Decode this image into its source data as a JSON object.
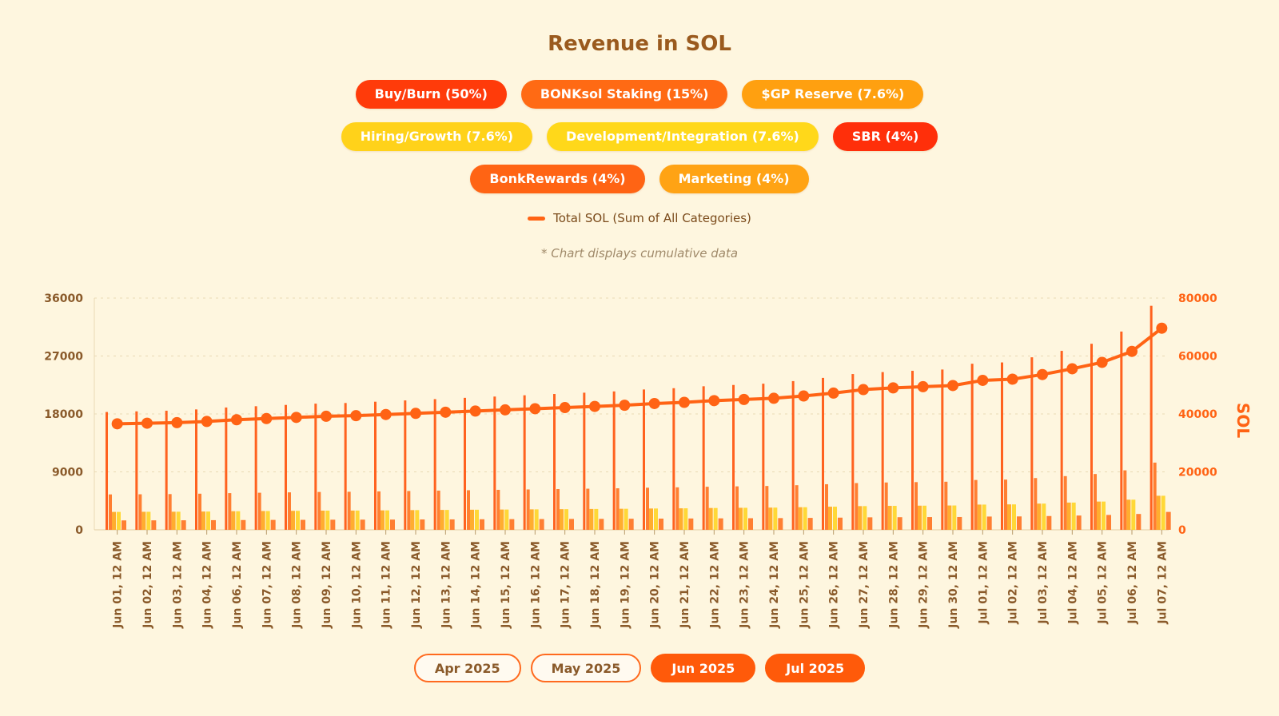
{
  "title": "Revenue in SOL",
  "legend": {
    "row1": [
      {
        "label": "Buy/Burn (50%)",
        "color": "#ff3b0a"
      },
      {
        "label": "BONKsol Staking (15%)",
        "color": "#ff6a14"
      },
      {
        "label": "$GP Reserve (7.6%)",
        "color": "#ffa010"
      }
    ],
    "row2": [
      {
        "label": "Hiring/Growth (7.6%)",
        "color": "#ffd21a"
      },
      {
        "label": "Development/Integration (7.6%)",
        "color": "#ffd81a"
      },
      {
        "label": "SBR (4%)",
        "color": "#ff2f0a"
      }
    ],
    "row3": [
      {
        "label": "BonkRewards (4%)",
        "color": "#ff6414"
      },
      {
        "label": "Marketing (4%)",
        "color": "#ffa314"
      }
    ],
    "line_label": "Total SOL (Sum of All Categories)"
  },
  "note": "* Chart displays cumulative data",
  "months": {
    "apr": "Apr 2025",
    "may": "May 2025",
    "jun": "Jun 2025",
    "jul": "Jul 2025"
  },
  "colors": {
    "bar_main": "#ff5a14",
    "bar_2": "#ffa010",
    "bar_3": "#ffd21a",
    "bar_4": "#ff6a14",
    "line": "#ff6314",
    "axis_text": "#8a5a2a",
    "right_axis_text": "#ff6314"
  },
  "chart_data": {
    "type": "bar",
    "categories": [
      "Jun 01, 12 AM",
      "Jun 02, 12 AM",
      "Jun 03, 12 AM",
      "Jun 04, 12 AM",
      "Jun 06, 12 AM",
      "Jun 07, 12 AM",
      "Jun 08, 12 AM",
      "Jun 09, 12 AM",
      "Jun 10, 12 AM",
      "Jun 11, 12 AM",
      "Jun 12, 12 AM",
      "Jun 13, 12 AM",
      "Jun 14, 12 AM",
      "Jun 15, 12 AM",
      "Jun 16, 12 AM",
      "Jun 17, 12 AM",
      "Jun 18, 12 AM",
      "Jun 19, 12 AM",
      "Jun 20, 12 AM",
      "Jun 21, 12 AM",
      "Jun 22, 12 AM",
      "Jun 23, 12 AM",
      "Jun 24, 12 AM",
      "Jun 25, 12 AM",
      "Jun 26, 12 AM",
      "Jun 27, 12 AM",
      "Jun 28, 12 AM",
      "Jun 29, 12 AM",
      "Jun 30, 12 AM",
      "Jul 01, 12 AM",
      "Jul 02, 12 AM",
      "Jul 03, 12 AM",
      "Jul 04, 12 AM",
      "Jul 05, 12 AM",
      "Jul 06, 12 AM",
      "Jul 07, 12 AM"
    ],
    "series": [
      {
        "name": "Buy/Burn (50%)",
        "axis": "left",
        "values": [
          18300,
          18400,
          18500,
          18700,
          19000,
          19200,
          19400,
          19600,
          19700,
          19900,
          20100,
          20300,
          20500,
          20700,
          20900,
          21100,
          21300,
          21500,
          21800,
          22000,
          22300,
          22500,
          22700,
          23100,
          23600,
          24200,
          24500,
          24700,
          24900,
          25800,
          26000,
          26800,
          27800,
          28900,
          30800,
          34800
        ]
      },
      {
        "name": "BONKsol Staking (15%)",
        "axis": "left",
        "values": [
          5500,
          5520,
          5550,
          5610,
          5700,
          5760,
          5820,
          5880,
          5910,
          5970,
          6030,
          6090,
          6150,
          6210,
          6270,
          6330,
          6390,
          6450,
          6540,
          6600,
          6690,
          6750,
          6810,
          6930,
          7080,
          7260,
          7350,
          7410,
          7470,
          7740,
          7800,
          8040,
          8340,
          8670,
          9240,
          10440
        ]
      },
      {
        "name": "$GP Reserve (7.6%)",
        "axis": "left",
        "values": [
          2780,
          2800,
          2810,
          2840,
          2890,
          2920,
          2950,
          2980,
          2990,
          3020,
          3060,
          3090,
          3120,
          3150,
          3180,
          3210,
          3240,
          3270,
          3310,
          3340,
          3390,
          3420,
          3450,
          3510,
          3590,
          3680,
          3720,
          3750,
          3780,
          3920,
          3950,
          4070,
          4230,
          4390,
          4680,
          5290
        ]
      },
      {
        "name": "Hiring/Growth (7.6%)",
        "axis": "left",
        "values": [
          2780,
          2800,
          2810,
          2840,
          2890,
          2920,
          2950,
          2980,
          2990,
          3020,
          3060,
          3090,
          3120,
          3150,
          3180,
          3210,
          3240,
          3270,
          3310,
          3340,
          3390,
          3420,
          3450,
          3510,
          3590,
          3680,
          3720,
          3750,
          3780,
          3920,
          3950,
          4070,
          4230,
          4390,
          4680,
          5290
        ]
      },
      {
        "name": "SBR (4%)",
        "axis": "left",
        "values": [
          1460,
          1470,
          1480,
          1500,
          1520,
          1540,
          1550,
          1570,
          1580,
          1590,
          1610,
          1620,
          1640,
          1660,
          1670,
          1690,
          1700,
          1720,
          1740,
          1760,
          1780,
          1800,
          1820,
          1850,
          1890,
          1940,
          1960,
          1980,
          1990,
          2060,
          2080,
          2140,
          2220,
          2310,
          2460,
          2780
        ]
      },
      {
        "name": "Total SOL (Sum of All Categories)",
        "axis": "right",
        "type": "line",
        "values": [
          36600,
          36800,
          37000,
          37400,
          38000,
          38400,
          38800,
          39200,
          39400,
          39800,
          40200,
          40600,
          41000,
          41400,
          41800,
          42200,
          42600,
          43000,
          43600,
          44000,
          44600,
          45000,
          45400,
          46200,
          47200,
          48400,
          49000,
          49400,
          49800,
          51600,
          52000,
          53600,
          55600,
          57800,
          61600,
          69600
        ]
      }
    ],
    "left_axis": {
      "ticks": [
        "0",
        "9000",
        "18000",
        "27000",
        "36000"
      ],
      "ylim": [
        0,
        36000
      ]
    },
    "right_axis": {
      "ticks": [
        "0",
        "20000",
        "40000",
        "60000",
        "80000"
      ],
      "ylim": [
        0,
        80000
      ],
      "label": "SOL"
    },
    "grid": true
  }
}
